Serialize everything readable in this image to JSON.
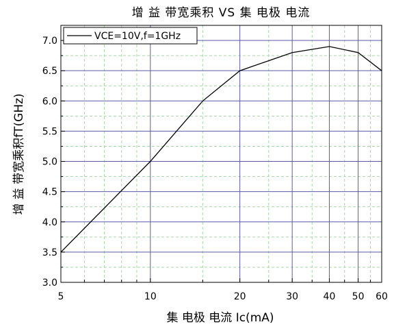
{
  "chart_data": {
    "type": "line",
    "title": "增 益  带宽乘积 VS 集 电极 电流",
    "xlabel": "集 电极 电流 Ic(mA)",
    "ylabel": "增 益  带宽乘积fT(GHz)",
    "x_scale": "log",
    "xlim": [
      5,
      60
    ],
    "ylim": [
      3.0,
      7.25
    ],
    "x_major_ticks": [
      5,
      10,
      20,
      30,
      40,
      50,
      60
    ],
    "x_minor_ticks": [
      6,
      7,
      8,
      9,
      15,
      25,
      35,
      45,
      55
    ],
    "y_ticks": [
      3.0,
      3.5,
      4.0,
      4.5,
      5.0,
      5.5,
      6.0,
      6.5,
      7.0
    ],
    "y_tick_labels": [
      "3.0",
      "3.5",
      "4.0",
      "4.5",
      "5.0",
      "5.5",
      "6.0",
      "6.5",
      "7.0"
    ],
    "grid": true,
    "legend_position": "top-left",
    "series": [
      {
        "name": "VCE=10V,f=1GHz",
        "color": "#000000",
        "x": [
          5,
          10,
          15,
          20,
          30,
          40,
          50,
          60
        ],
        "y": [
          3.5,
          5.0,
          6.0,
          6.5,
          6.8,
          6.9,
          6.8,
          6.5
        ]
      }
    ],
    "colors": {
      "grid_major": "#5a5aa8",
      "grid_minor": "#a6d8a6",
      "axis": "#000000",
      "line": "#000000"
    }
  }
}
